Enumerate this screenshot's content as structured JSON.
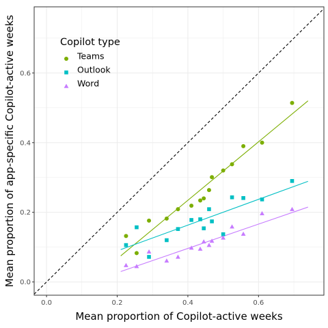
{
  "chart_data": {
    "type": "scatter",
    "xlabel": "Mean proportion of Copilot-active weeks",
    "ylabel": "Mean proportion of app-specific Copilot-active weeks",
    "xlim": [
      -0.035,
      0.785
    ],
    "ylim": [
      -0.038,
      0.79
    ],
    "x_ticks": [
      0.0,
      0.2,
      0.4,
      0.6
    ],
    "y_ticks": [
      0.0,
      0.2,
      0.4,
      0.6
    ],
    "x_tick_labels": [
      "0.0",
      "0.2",
      "0.4",
      "0.6"
    ],
    "y_tick_labels": [
      "0.0",
      "0.2",
      "0.4",
      "0.6"
    ],
    "grid": true,
    "reference_line": {
      "style": "dashed",
      "color": "#000000",
      "slope": 1,
      "intercept": 0
    },
    "legend": {
      "title": "Copilot type",
      "position": "top-left"
    },
    "series": [
      {
        "name": "Teams",
        "marker": "circle",
        "color": "#7cae00",
        "points": [
          [
            0.225,
            0.132
          ],
          [
            0.255,
            0.083
          ],
          [
            0.29,
            0.176
          ],
          [
            0.34,
            0.182
          ],
          [
            0.372,
            0.209
          ],
          [
            0.41,
            0.219
          ],
          [
            0.435,
            0.234
          ],
          [
            0.445,
            0.24
          ],
          [
            0.46,
            0.264
          ],
          [
            0.468,
            0.301
          ],
          [
            0.5,
            0.32
          ],
          [
            0.525,
            0.338
          ],
          [
            0.557,
            0.39
          ],
          [
            0.61,
            0.4
          ],
          [
            0.695,
            0.514
          ]
        ],
        "trend": {
          "x": [
            0.21,
            0.74
          ],
          "y": [
            0.075,
            0.52
          ]
        }
      },
      {
        "name": "Outlook",
        "marker": "square",
        "color": "#00bfc4",
        "points": [
          [
            0.225,
            0.106
          ],
          [
            0.255,
            0.157
          ],
          [
            0.29,
            0.072
          ],
          [
            0.34,
            0.12
          ],
          [
            0.372,
            0.152
          ],
          [
            0.41,
            0.178
          ],
          [
            0.435,
            0.18
          ],
          [
            0.445,
            0.154
          ],
          [
            0.46,
            0.209
          ],
          [
            0.468,
            0.174
          ],
          [
            0.5,
            0.137
          ],
          [
            0.525,
            0.243
          ],
          [
            0.557,
            0.241
          ],
          [
            0.61,
            0.237
          ],
          [
            0.695,
            0.29
          ]
        ],
        "trend": {
          "x": [
            0.21,
            0.74
          ],
          "y": [
            0.093,
            0.289
          ]
        }
      },
      {
        "name": "Word",
        "marker": "triangle",
        "color": "#c77cff",
        "points": [
          [
            0.225,
            0.048
          ],
          [
            0.255,
            0.045
          ],
          [
            0.29,
            0.087
          ],
          [
            0.34,
            0.061
          ],
          [
            0.372,
            0.072
          ],
          [
            0.41,
            0.098
          ],
          [
            0.435,
            0.095
          ],
          [
            0.445,
            0.116
          ],
          [
            0.46,
            0.106
          ],
          [
            0.468,
            0.118
          ],
          [
            0.5,
            0.127
          ],
          [
            0.525,
            0.159
          ],
          [
            0.557,
            0.138
          ],
          [
            0.61,
            0.197
          ],
          [
            0.695,
            0.209
          ]
        ],
        "trend": {
          "x": [
            0.21,
            0.74
          ],
          "y": [
            0.03,
            0.215
          ]
        }
      }
    ]
  }
}
